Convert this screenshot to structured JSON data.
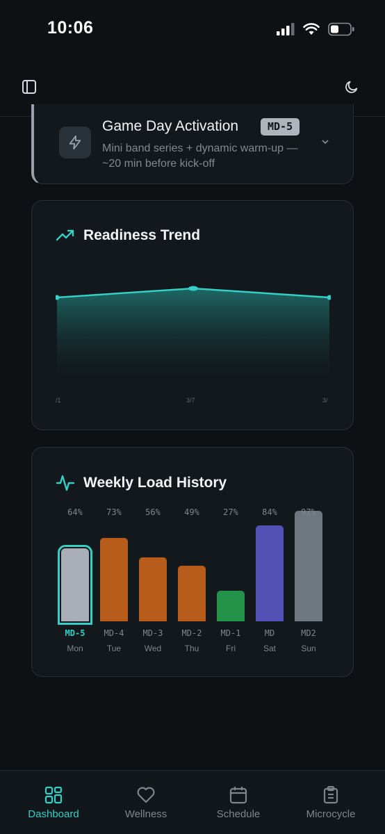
{
  "status_bar": {
    "time": "10:06"
  },
  "activation": {
    "title": "Game Day Activation",
    "badge": "MD-5",
    "description": "Mini band series + dynamic warm-up — ~20 min before kick-off"
  },
  "readiness": {
    "title": "Readiness Trend",
    "tick_labels": [
      "/1",
      "3/7",
      "3/"
    ]
  },
  "weekly_load": {
    "title": "Weekly Load History",
    "days": [
      {
        "pct": "64%",
        "md": "MD-5",
        "day": "Mon",
        "value": 64,
        "color": "#a9aeb7",
        "active": true
      },
      {
        "pct": "73%",
        "md": "MD-4",
        "day": "Tue",
        "value": 73,
        "color": "#b75c1b",
        "active": false
      },
      {
        "pct": "56%",
        "md": "MD-3",
        "day": "Wed",
        "value": 56,
        "color": "#b75c1b",
        "active": false
      },
      {
        "pct": "49%",
        "md": "MD-2",
        "day": "Thu",
        "value": 49,
        "color": "#b75c1b",
        "active": false
      },
      {
        "pct": "27%",
        "md": "MD-1",
        "day": "Fri",
        "value": 27,
        "color": "#249349",
        "active": false
      },
      {
        "pct": "84%",
        "md": "MD",
        "day": "Sat",
        "value": 84,
        "color": "#5451b5",
        "active": false
      },
      {
        "pct": "97%",
        "md": "MD2",
        "day": "Sun",
        "value": 97,
        "color": "#6e7780",
        "active": false
      }
    ]
  },
  "nav": {
    "items": [
      {
        "label": "Dashboard",
        "icon": "dashboard-grid-icon",
        "active": true
      },
      {
        "label": "Wellness",
        "icon": "heart-icon",
        "active": false
      },
      {
        "label": "Schedule",
        "icon": "calendar-icon",
        "active": false
      },
      {
        "label": "Microcycle",
        "icon": "clipboard-icon",
        "active": false
      }
    ]
  },
  "colors": {
    "accent": "#35cfc6",
    "background": "#0d1114",
    "card": "#12181b"
  }
}
